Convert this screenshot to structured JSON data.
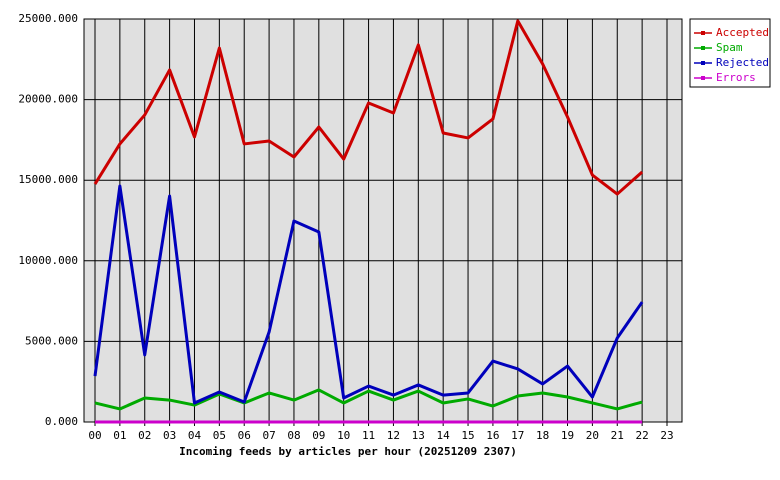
{
  "chart_data": {
    "type": "line",
    "xlabel": "Incoming feeds by articles per hour (20251209 2307)",
    "categories": [
      "00",
      "01",
      "02",
      "03",
      "04",
      "05",
      "06",
      "07",
      "08",
      "09",
      "10",
      "11",
      "12",
      "13",
      "14",
      "15",
      "16",
      "17",
      "18",
      "19",
      "20",
      "21",
      "22",
      "23"
    ],
    "series": [
      {
        "name": "Accepted",
        "color": "#cc0000",
        "values": [
          14760,
          17250,
          19050,
          21840,
          17680,
          23200,
          17250,
          17430,
          16440,
          18300,
          16310,
          19790,
          19170,
          23390,
          17930,
          17620,
          18800,
          24880,
          22210,
          18920,
          15320,
          14140,
          15510,
          null
        ]
      },
      {
        "name": "Spam",
        "color": "#00aa00",
        "values": [
          1180,
          810,
          1490,
          1360,
          1050,
          1740,
          1180,
          1800,
          1360,
          1990,
          1180,
          1920,
          1360,
          1920,
          1180,
          1430,
          990,
          1610,
          1800,
          1550,
          1180,
          810,
          1240,
          null
        ]
      },
      {
        "name": "Rejected",
        "color": "#0000bb",
        "values": [
          2850,
          14640,
          4160,
          14020,
          1180,
          1860,
          1240,
          5580,
          12470,
          11790,
          1490,
          2230,
          1670,
          2300,
          1670,
          1800,
          3780,
          3290,
          2360,
          3470,
          1550,
          5210,
          7440,
          null
        ]
      },
      {
        "name": "Errors",
        "color": "#cc00cc",
        "values": [
          0,
          0,
          0,
          0,
          0,
          0,
          0,
          0,
          0,
          0,
          0,
          0,
          0,
          0,
          0,
          0,
          0,
          0,
          0,
          0,
          0,
          0,
          0,
          null
        ]
      }
    ],
    "ylim": [
      0,
      25000
    ],
    "yticks": [
      {
        "value": 0,
        "label": "0.000"
      },
      {
        "value": 5000,
        "label": "5000.000"
      },
      {
        "value": 10000,
        "label": "10000.000"
      },
      {
        "value": 15000,
        "label": "15000.000"
      },
      {
        "value": 20000,
        "label": "20000.000"
      },
      {
        "value": 25000,
        "label": "25000.000"
      }
    ],
    "grid": true,
    "legend": "outside-top-right"
  }
}
